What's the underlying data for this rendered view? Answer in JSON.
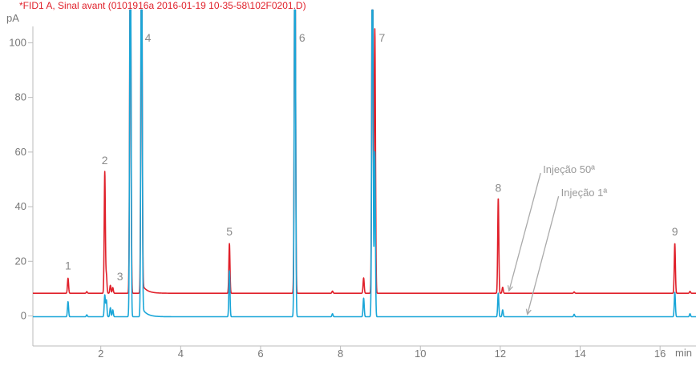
{
  "chart_data": {
    "type": "line",
    "title": "*FID1 A, Sinal avant (0101916a 2016-01-19 10-35-58\\102F0201.D)",
    "ylabel": "pA",
    "xlabel": "min",
    "xlim": [
      0.3,
      16.9
    ],
    "ylim": [
      -11,
      106
    ],
    "yticks": [
      0,
      20,
      40,
      60,
      80,
      100
    ],
    "xticks": [
      2,
      4,
      6,
      8,
      10,
      12,
      14,
      16
    ],
    "colors": {
      "injection_50": "#e0202a",
      "injection_1": "#1aa6d8",
      "title": "#e0202a",
      "axis": "#bbbbbb",
      "annotation": "#aaaaaa"
    },
    "series": [
      {
        "name": "Injeção 50ª",
        "key": "injection_50",
        "baseline": 8.3,
        "peaks": [
          {
            "t": 1.18,
            "h": 13.8
          },
          {
            "t": 1.65,
            "h": 8.9
          },
          {
            "t": 2.1,
            "h": 52.8
          },
          {
            "t": 2.14,
            "h": 15.0
          },
          {
            "t": 2.24,
            "h": 11.2
          },
          {
            "t": 2.3,
            "h": 10.4
          },
          {
            "t": 2.74,
            "h": 150
          },
          {
            "t": 3.02,
            "h": 150
          },
          {
            "t": 5.22,
            "h": 26.5
          },
          {
            "t": 6.86,
            "h": 150
          },
          {
            "t": 7.8,
            "h": 9.1
          },
          {
            "t": 8.58,
            "h": 13.9
          },
          {
            "t": 8.8,
            "h": 150
          },
          {
            "t": 8.86,
            "h": 105
          },
          {
            "t": 11.95,
            "h": 43.2
          },
          {
            "t": 12.06,
            "h": 10.5
          },
          {
            "t": 13.85,
            "h": 8.8
          },
          {
            "t": 16.37,
            "h": 26.6
          },
          {
            "t": 16.75,
            "h": 9.0
          }
        ]
      },
      {
        "name": "Injeção 1ª",
        "key": "injection_1",
        "baseline": -0.3,
        "peaks": [
          {
            "t": 1.18,
            "h": 5.2
          },
          {
            "t": 1.65,
            "h": 0.4
          },
          {
            "t": 2.1,
            "h": 7.6
          },
          {
            "t": 2.14,
            "h": 5.8
          },
          {
            "t": 2.24,
            "h": 3.0
          },
          {
            "t": 2.3,
            "h": 2.2
          },
          {
            "t": 2.74,
            "h": 150
          },
          {
            "t": 3.02,
            "h": 150
          },
          {
            "t": 5.22,
            "h": 16.5
          },
          {
            "t": 6.86,
            "h": 150
          },
          {
            "t": 7.8,
            "h": 0.8
          },
          {
            "t": 8.58,
            "h": 6.5
          },
          {
            "t": 8.8,
            "h": 150
          },
          {
            "t": 8.86,
            "h": 60
          },
          {
            "t": 11.95,
            "h": 8.4
          },
          {
            "t": 12.06,
            "h": 2.2
          },
          {
            "t": 13.85,
            "h": 0.6
          },
          {
            "t": 16.37,
            "h": 8.7
          },
          {
            "t": 16.75,
            "h": 0.8
          }
        ]
      }
    ],
    "peak_labels": [
      {
        "label": "1",
        "t": 1.18,
        "y": 17.0
      },
      {
        "label": "2",
        "t": 2.1,
        "y": 55.5
      },
      {
        "label": "3",
        "t": 2.48,
        "y": 13.0
      },
      {
        "label": "4",
        "t": 3.18,
        "y": 100.5
      },
      {
        "label": "5",
        "t": 5.22,
        "y": 29.5
      },
      {
        "label": "6",
        "t": 7.04,
        "y": 100.5
      },
      {
        "label": "7",
        "t": 9.04,
        "y": 100.5
      },
      {
        "label": "8",
        "t": 11.95,
        "y": 45.5
      },
      {
        "label": "9",
        "t": 16.37,
        "y": 29.5
      }
    ],
    "annotations": [
      {
        "text": "Injeção 50ª",
        "label_t": 13.05,
        "label_y": 53.5,
        "tip_t": 12.22,
        "tip_y": 9.2
      },
      {
        "text": "Injeção 1ª",
        "label_t": 13.5,
        "label_y": 45.0,
        "tip_t": 12.68,
        "tip_y": 0.6
      }
    ]
  }
}
